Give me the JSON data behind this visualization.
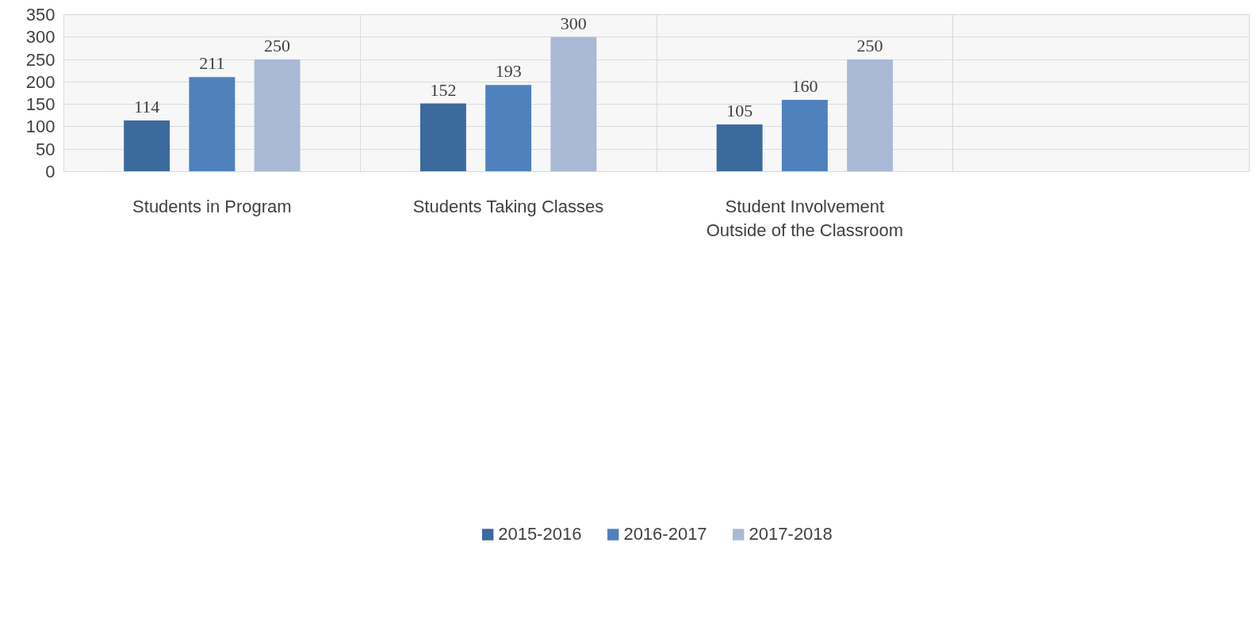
{
  "chart_data": {
    "type": "bar",
    "categories": [
      "Students in Program",
      "Students Taking Classes",
      "Student Involvement Outside of the Classroom",
      null
    ],
    "series": [
      {
        "name": "2015-2016",
        "color": "#3d6a9d",
        "values": [
          114,
          152,
          105,
          null
        ]
      },
      {
        "name": "2016-2017",
        "color": "#4f81bd",
        "values": [
          211,
          193,
          160,
          null
        ]
      },
      {
        "name": "2017-2018",
        "color": "#aab9d6",
        "values": [
          250,
          300,
          250,
          null
        ]
      }
    ],
    "ylim": [
      0,
      350
    ],
    "yticks": [
      0,
      50,
      100,
      150,
      200,
      250,
      300,
      350
    ],
    "grid": true,
    "legend": "bottom",
    "data_labels": true
  }
}
